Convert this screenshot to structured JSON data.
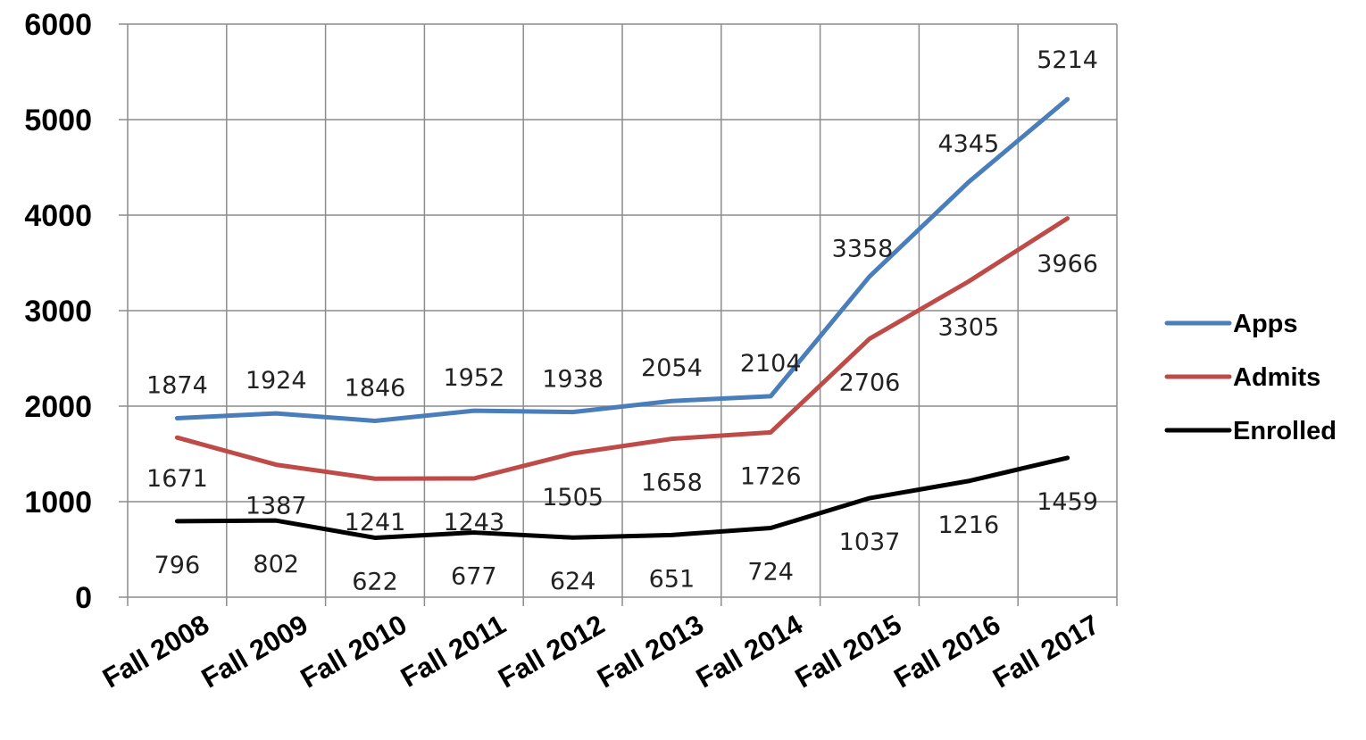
{
  "chart_data": {
    "type": "line",
    "categories": [
      "Fall 2008",
      "Fall 2009",
      "Fall 2010",
      "Fall 2011",
      "Fall 2012",
      "Fall 2013",
      "Fall 2014",
      "Fall 2015",
      "Fall 2016",
      "Fall 2017"
    ],
    "series": [
      {
        "name": "Apps",
        "color": "#4a7ebb",
        "values": [
          1874,
          1924,
          1846,
          1952,
          1938,
          2054,
          2104,
          3358,
          4345,
          5214
        ]
      },
      {
        "name": "Admits",
        "color": "#be4b48",
        "values": [
          1671,
          1387,
          1241,
          1243,
          1505,
          1658,
          1726,
          2706,
          3305,
          3966
        ]
      },
      {
        "name": "Enrolled",
        "color": "#000000",
        "values": [
          796,
          802,
          622,
          677,
          624,
          651,
          724,
          1037,
          1216,
          1459
        ]
      }
    ],
    "yticks": [
      0,
      1000,
      2000,
      3000,
      4000,
      5000,
      6000
    ],
    "ylim": [
      0,
      6000
    ],
    "grid": true,
    "legend_position": "right",
    "title": "",
    "xlabel": "",
    "ylabel": ""
  }
}
